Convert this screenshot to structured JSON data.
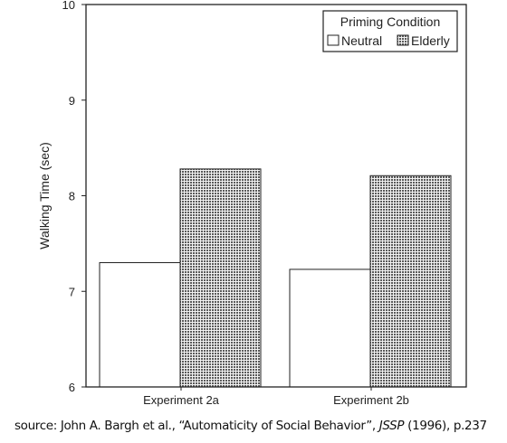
{
  "chart_data": {
    "type": "bar",
    "title": "",
    "xlabel": "",
    "ylabel": "Walking Time (sec)",
    "ylim": [
      6,
      10
    ],
    "yticks": [
      "6",
      "7",
      "8",
      "9",
      "10"
    ],
    "categories": [
      "Experiment 2a",
      "Experiment 2b"
    ],
    "series": [
      {
        "name": "Neutral",
        "values": [
          7.3,
          7.23
        ],
        "fill": "#ffffff"
      },
      {
        "name": "Elderly",
        "values": [
          8.28,
          8.21
        ],
        "fill": "#8a8a8a"
      }
    ],
    "legend": {
      "title": "Priming Condition",
      "placement": "top-right"
    },
    "grid": false
  },
  "source": {
    "prefix": "source: John A. Bargh et al., “Automaticity of Social Behavior”,",
    "journal": "JSSP",
    "suffix": "(1996), p.237"
  }
}
